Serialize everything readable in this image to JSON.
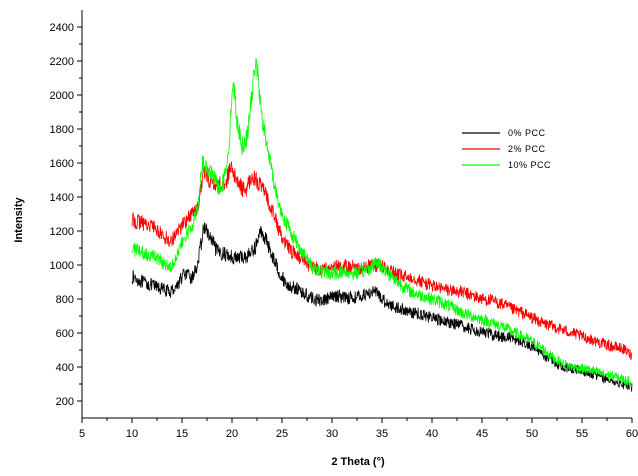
{
  "chart_data": {
    "type": "line",
    "title": "",
    "xlabel": "2 Theta (°)",
    "ylabel": "Intensity",
    "xlim": [
      5,
      60
    ],
    "ylim": [
      100,
      2500
    ],
    "xticks": [
      "5",
      "10",
      "15",
      "20",
      "25",
      "30",
      "35",
      "40",
      "45",
      "50",
      "55",
      "60"
    ],
    "yticks": [
      "200",
      "400",
      "600",
      "800",
      "1000",
      "1200",
      "1400",
      "1600",
      "1800",
      "2000",
      "2200",
      "2400"
    ],
    "grid": false,
    "legend_position": "right",
    "series": [
      {
        "name": "0% PCC",
        "color": "#000000",
        "points": [
          [
            10,
            930
          ],
          [
            11,
            900
          ],
          [
            12,
            880
          ],
          [
            13,
            860
          ],
          [
            13.8,
            840
          ],
          [
            14.5,
            880
          ],
          [
            15.2,
            950
          ],
          [
            16,
            920
          ],
          [
            16.6,
            1010
          ],
          [
            17.2,
            1230
          ],
          [
            17.8,
            1160
          ],
          [
            18.5,
            1080
          ],
          [
            19.5,
            1060
          ],
          [
            20.5,
            1040
          ],
          [
            21.5,
            1050
          ],
          [
            22.3,
            1100
          ],
          [
            22.9,
            1200
          ],
          [
            23.4,
            1150
          ],
          [
            24,
            1060
          ],
          [
            24.8,
            950
          ],
          [
            25.5,
            880
          ],
          [
            26.5,
            860
          ],
          [
            27.5,
            820
          ],
          [
            28.5,
            790
          ],
          [
            29.5,
            800
          ],
          [
            30.5,
            820
          ],
          [
            31.5,
            810
          ],
          [
            32.5,
            810
          ],
          [
            33.5,
            830
          ],
          [
            34.2,
            850
          ],
          [
            35,
            800
          ],
          [
            36,
            760
          ],
          [
            37,
            740
          ],
          [
            38,
            720
          ],
          [
            39,
            710
          ],
          [
            40,
            690
          ],
          [
            41,
            670
          ],
          [
            42,
            660
          ],
          [
            43,
            640
          ],
          [
            44,
            620
          ],
          [
            45,
            610
          ],
          [
            46,
            590
          ],
          [
            47,
            580
          ],
          [
            48,
            570
          ],
          [
            49,
            550
          ],
          [
            50,
            520
          ],
          [
            51,
            480
          ],
          [
            52,
            440
          ],
          [
            53,
            400
          ],
          [
            54,
            390
          ],
          [
            55,
            380
          ],
          [
            56,
            360
          ],
          [
            57,
            340
          ],
          [
            58,
            320
          ],
          [
            59,
            300
          ],
          [
            60,
            280
          ]
        ]
      },
      {
        "name": "2% PCC",
        "color": "#ff0000",
        "points": [
          [
            10,
            1260
          ],
          [
            11,
            1250
          ],
          [
            12,
            1230
          ],
          [
            13,
            1180
          ],
          [
            13.8,
            1140
          ],
          [
            14.5,
            1190
          ],
          [
            15.2,
            1250
          ],
          [
            16,
            1300
          ],
          [
            16.6,
            1350
          ],
          [
            17.2,
            1550
          ],
          [
            17.8,
            1500
          ],
          [
            18.5,
            1470
          ],
          [
            19.3,
            1480
          ],
          [
            19.9,
            1570
          ],
          [
            20.5,
            1490
          ],
          [
            21.3,
            1430
          ],
          [
            22,
            1530
          ],
          [
            22.7,
            1480
          ],
          [
            23.5,
            1400
          ],
          [
            24.3,
            1280
          ],
          [
            25,
            1150
          ],
          [
            26,
            1080
          ],
          [
            27,
            1030
          ],
          [
            28,
            990
          ],
          [
            29,
            970
          ],
          [
            30,
            990
          ],
          [
            31,
            990
          ],
          [
            32,
            990
          ],
          [
            33,
            980
          ],
          [
            34,
            1000
          ],
          [
            35,
            990
          ],
          [
            36,
            960
          ],
          [
            37,
            930
          ],
          [
            38,
            930
          ],
          [
            39,
            900
          ],
          [
            40,
            880
          ],
          [
            41,
            860
          ],
          [
            42,
            850
          ],
          [
            43,
            840
          ],
          [
            44,
            820
          ],
          [
            45,
            800
          ],
          [
            46,
            790
          ],
          [
            47,
            770
          ],
          [
            48,
            740
          ],
          [
            49,
            720
          ],
          [
            50,
            690
          ],
          [
            51,
            660
          ],
          [
            52,
            640
          ],
          [
            53,
            620
          ],
          [
            54,
            600
          ],
          [
            55,
            580
          ],
          [
            56,
            560
          ],
          [
            57,
            540
          ],
          [
            58,
            520
          ],
          [
            59,
            510
          ],
          [
            60,
            470
          ]
        ]
      },
      {
        "name": "10% PCC",
        "color": "#00ff00",
        "points": [
          [
            10,
            1100
          ],
          [
            11,
            1070
          ],
          [
            12,
            1060
          ],
          [
            13,
            1020
          ],
          [
            13.8,
            990
          ],
          [
            14.5,
            1060
          ],
          [
            15.2,
            1150
          ],
          [
            16,
            1230
          ],
          [
            16.6,
            1350
          ],
          [
            17,
            1600
          ],
          [
            17.5,
            1560
          ],
          [
            18,
            1530
          ],
          [
            18.7,
            1450
          ],
          [
            19.2,
            1500
          ],
          [
            19.7,
            1700
          ],
          [
            20.1,
            2100
          ],
          [
            20.5,
            1850
          ],
          [
            21,
            1700
          ],
          [
            21.5,
            1750
          ],
          [
            22,
            2000
          ],
          [
            22.4,
            2230
          ],
          [
            22.9,
            1900
          ],
          [
            23.5,
            1700
          ],
          [
            24,
            1550
          ],
          [
            24.5,
            1400
          ],
          [
            25,
            1300
          ],
          [
            26,
            1180
          ],
          [
            27,
            1080
          ],
          [
            28,
            990
          ],
          [
            29,
            960
          ],
          [
            30,
            950
          ],
          [
            31,
            960
          ],
          [
            32,
            950
          ],
          [
            33,
            960
          ],
          [
            34,
            990
          ],
          [
            34.5,
            1020
          ],
          [
            35,
            990
          ],
          [
            36,
            930
          ],
          [
            37,
            880
          ],
          [
            38,
            840
          ],
          [
            39,
            820
          ],
          [
            40,
            800
          ],
          [
            41,
            780
          ],
          [
            42,
            750
          ],
          [
            43,
            720
          ],
          [
            44,
            700
          ],
          [
            45,
            680
          ],
          [
            46,
            660
          ],
          [
            47,
            640
          ],
          [
            48,
            610
          ],
          [
            49,
            580
          ],
          [
            50,
            550
          ],
          [
            51,
            510
          ],
          [
            52,
            460
          ],
          [
            53,
            420
          ],
          [
            54,
            400
          ],
          [
            55,
            390
          ],
          [
            56,
            380
          ],
          [
            57,
            360
          ],
          [
            58,
            350
          ],
          [
            59,
            330
          ],
          [
            60,
            310
          ]
        ]
      }
    ]
  }
}
